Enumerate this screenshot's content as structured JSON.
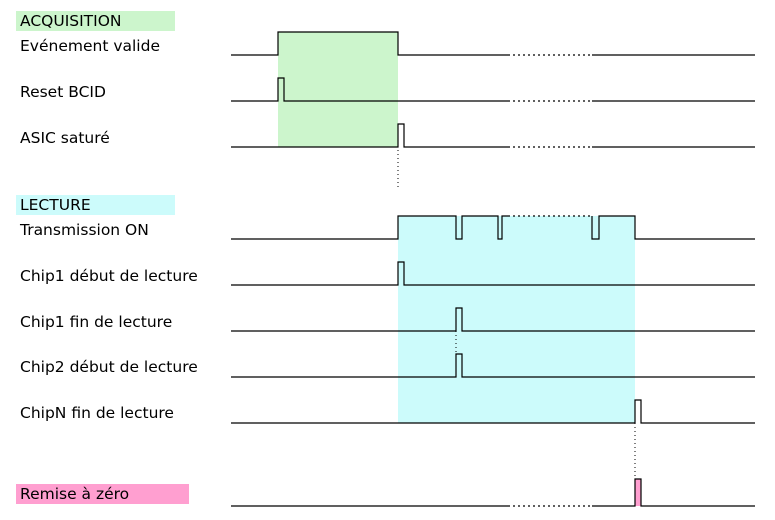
{
  "sections": {
    "acquisition": {
      "title": "ACQUISITION",
      "color": "#ccf5cc"
    },
    "lecture": {
      "title": "LECTURE",
      "color": "#ccfbfb"
    },
    "reset": {
      "title": "Remise à zéro",
      "color": "#ff9fd0"
    }
  },
  "signals": [
    {
      "label": "Evénement valide"
    },
    {
      "label": "Reset BCID"
    },
    {
      "label": "ASIC saturé"
    },
    {
      "label": "Transmission ON"
    },
    {
      "label": "Chip1 début de lecture"
    },
    {
      "label": "Chip1 fin de lecture"
    },
    {
      "label": "Chip2 début de lecture"
    },
    {
      "label": "ChipN fin de lecture"
    }
  ],
  "colors": {
    "acquisition_window": "#ccf5cc",
    "lecture_window": "#ccfbfb",
    "reset_pulse": "#ff9fd0",
    "line": "#000000"
  }
}
